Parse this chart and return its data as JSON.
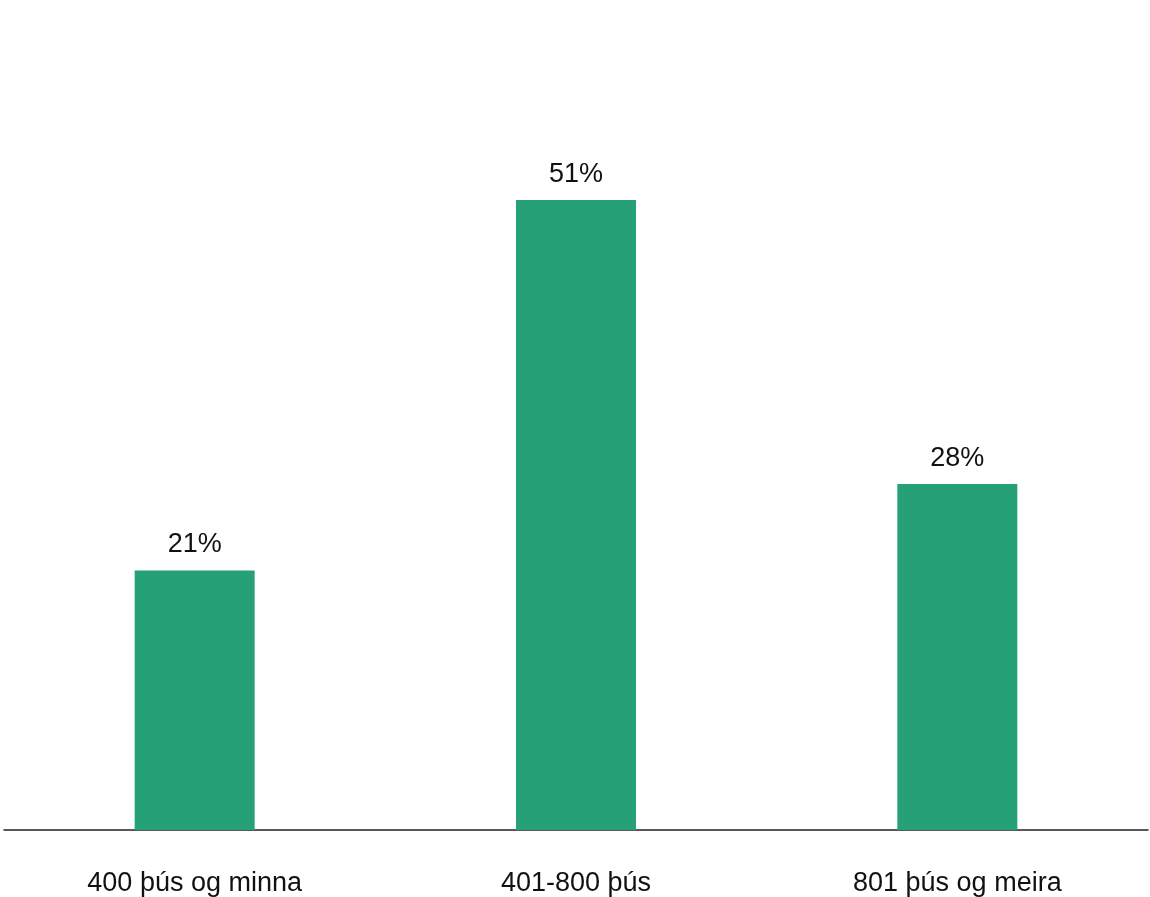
{
  "chart_data": {
    "type": "bar",
    "categories": [
      "400 þús og minna",
      "401-800 þús",
      "801 þús og meira"
    ],
    "values": [
      21,
      51,
      28
    ],
    "color": "#25a077",
    "value_labels": [
      "21%",
      "51%",
      "28%"
    ],
    "grid": false
  }
}
